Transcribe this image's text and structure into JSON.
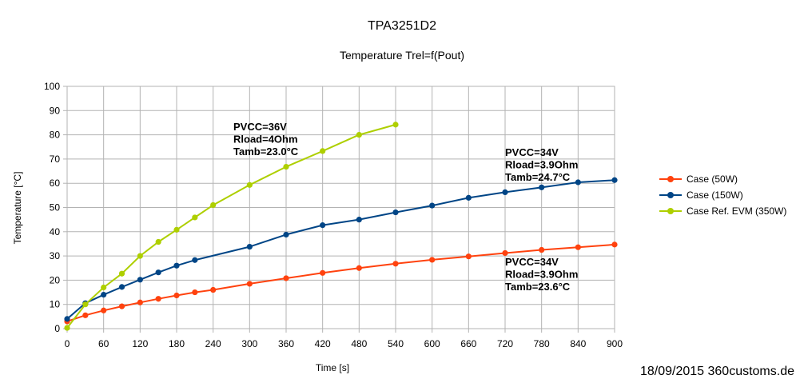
{
  "chart_data": {
    "type": "line",
    "title": "TPA3251D2",
    "subtitle": "Temperature Trel=f(Pout)",
    "xlabel": "Time [s]",
    "ylabel": "Temperature [°C]",
    "xlim": [
      0,
      900
    ],
    "ylim": [
      0,
      100
    ],
    "xticks": [
      0,
      60,
      120,
      180,
      240,
      300,
      360,
      420,
      480,
      540,
      600,
      660,
      720,
      780,
      840,
      900
    ],
    "yticks": [
      0,
      10,
      20,
      30,
      40,
      50,
      60,
      70,
      80,
      90,
      100
    ],
    "grid": true,
    "legend_position": "right",
    "series": [
      {
        "name": "Case (50W)",
        "color": "#ff420e",
        "x": [
          0,
          30,
          60,
          90,
          120,
          150,
          180,
          210,
          240,
          300,
          360,
          420,
          480,
          540,
          600,
          660,
          720,
          780,
          840,
          900
        ],
        "y": [
          3,
          5.5,
          7.5,
          9.2,
          10.8,
          12.3,
          13.7,
          15,
          16,
          18.5,
          20.8,
          23,
          25,
          26.8,
          28.4,
          29.8,
          31.2,
          32.5,
          33.6,
          34.7
        ]
      },
      {
        "name": "Case (150W)",
        "color": "#004586",
        "x": [
          0,
          30,
          60,
          90,
          120,
          150,
          180,
          210,
          300,
          360,
          420,
          480,
          540,
          600,
          660,
          720,
          780,
          840,
          900
        ],
        "y": [
          4,
          10.5,
          14,
          17.2,
          20.2,
          23.2,
          26,
          28.3,
          33.8,
          38.8,
          42.7,
          45,
          48,
          50.8,
          54,
          56.3,
          58.3,
          60.4,
          61.3
        ]
      },
      {
        "name": "Case Ref. EVM (350W)",
        "color": "#aecf00",
        "x": [
          0,
          30,
          60,
          90,
          120,
          150,
          180,
          210,
          240,
          300,
          360,
          420,
          480,
          540
        ],
        "y": [
          0.3,
          10,
          17,
          22.7,
          30,
          35.8,
          40.8,
          45.9,
          51,
          59.3,
          66.8,
          73.3,
          80,
          84.2
        ]
      }
    ],
    "annotations": [
      {
        "lines": [
          "PVCC=36V",
          "Rload=4Ohm",
          "Tamb=23.0°C"
        ]
      },
      {
        "lines": [
          "PVCC=34V",
          "Rload=3.9Ohm",
          "Tamb=24.7°C"
        ]
      },
      {
        "lines": [
          "PVCC=34V",
          "Rload=3.9Ohm",
          "Tamb=23.6°C"
        ]
      }
    ]
  },
  "footer": "18/09/2015 360customs.de"
}
